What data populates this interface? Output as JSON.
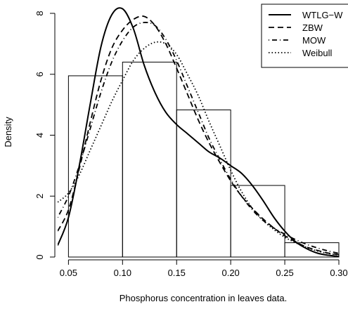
{
  "chart_data": {
    "type": "histogram-density",
    "title": "",
    "xlabel": "Phosphorus concentration in leaves data.",
    "ylabel": "Density",
    "xlim": [
      0.04,
      0.3
    ],
    "ylim": [
      0,
      8.3
    ],
    "x_ticks": [
      0.05,
      0.1,
      0.15,
      0.2,
      0.25,
      0.3
    ],
    "x_tick_labels": [
      "0.05",
      "0.10",
      "0.15",
      "0.20",
      "0.25",
      "0.30"
    ],
    "y_ticks": [
      0,
      2,
      4,
      6,
      8
    ],
    "y_tick_labels": [
      "0",
      "2",
      "4",
      "6",
      "8"
    ],
    "grid": false,
    "legend_position": "top-right",
    "histogram": {
      "bin_edges": [
        0.05,
        0.1,
        0.15,
        0.2,
        0.25,
        0.3
      ],
      "densities": [
        5.95,
        6.4,
        4.83,
        2.35,
        0.47
      ]
    },
    "series": [
      {
        "name": "WTLG−W",
        "line_style": "solid",
        "x": [
          0.04,
          0.05,
          0.06,
          0.07,
          0.08,
          0.09,
          0.1,
          0.11,
          0.12,
          0.13,
          0.14,
          0.15,
          0.16,
          0.17,
          0.18,
          0.19,
          0.2,
          0.21,
          0.22,
          0.23,
          0.24,
          0.25,
          0.26,
          0.27,
          0.28,
          0.29,
          0.3
        ],
        "y": [
          0.38,
          1.3,
          3.0,
          5.0,
          6.9,
          7.95,
          8.15,
          7.5,
          6.3,
          5.4,
          4.75,
          4.35,
          4.05,
          3.75,
          3.45,
          3.25,
          3.0,
          2.75,
          2.35,
          1.85,
          1.3,
          0.85,
          0.5,
          0.28,
          0.13,
          0.06,
          0.02
        ]
      },
      {
        "name": "ZBW",
        "line_style": "dashed",
        "x": [
          0.04,
          0.05,
          0.06,
          0.07,
          0.08,
          0.09,
          0.1,
          0.11,
          0.12,
          0.13,
          0.14,
          0.15,
          0.16,
          0.17,
          0.18,
          0.19,
          0.2,
          0.21,
          0.22,
          0.23,
          0.24,
          0.25,
          0.26,
          0.27,
          0.28,
          0.29,
          0.3
        ],
        "y": [
          0.85,
          1.55,
          2.9,
          4.4,
          5.8,
          6.85,
          7.45,
          7.8,
          7.9,
          7.6,
          7.0,
          6.2,
          5.35,
          4.5,
          3.75,
          3.1,
          2.5,
          2.0,
          1.6,
          1.25,
          0.95,
          0.7,
          0.5,
          0.33,
          0.22,
          0.13,
          0.08
        ]
      },
      {
        "name": "MOW",
        "line_style": "dotdash",
        "x": [
          0.04,
          0.05,
          0.06,
          0.07,
          0.08,
          0.09,
          0.1,
          0.11,
          0.12,
          0.13,
          0.14,
          0.15,
          0.16,
          0.17,
          0.18,
          0.19,
          0.2,
          0.21,
          0.22,
          0.23,
          0.24,
          0.25,
          0.26,
          0.27,
          0.28,
          0.29,
          0.3
        ],
        "y": [
          1.3,
          2.0,
          3.0,
          4.2,
          5.4,
          6.4,
          7.1,
          7.55,
          7.7,
          7.6,
          7.15,
          6.45,
          5.6,
          4.75,
          3.9,
          3.2,
          2.55,
          2.0,
          1.55,
          1.2,
          0.95,
          0.75,
          0.57,
          0.42,
          0.3,
          0.2,
          0.12
        ]
      },
      {
        "name": "Weibull",
        "line_style": "dotted",
        "x": [
          0.04,
          0.05,
          0.06,
          0.07,
          0.08,
          0.09,
          0.1,
          0.11,
          0.12,
          0.13,
          0.14,
          0.15,
          0.16,
          0.17,
          0.18,
          0.19,
          0.2,
          0.21,
          0.22,
          0.23,
          0.24,
          0.25,
          0.26,
          0.27,
          0.28,
          0.29,
          0.3
        ],
        "y": [
          1.8,
          2.1,
          2.7,
          3.5,
          4.3,
          5.1,
          5.8,
          6.45,
          6.85,
          7.05,
          7.0,
          6.65,
          6.0,
          5.3,
          4.45,
          3.65,
          2.85,
          2.15,
          1.6,
          1.2,
          0.9,
          0.65,
          0.47,
          0.32,
          0.2,
          0.12,
          0.07
        ]
      }
    ]
  }
}
